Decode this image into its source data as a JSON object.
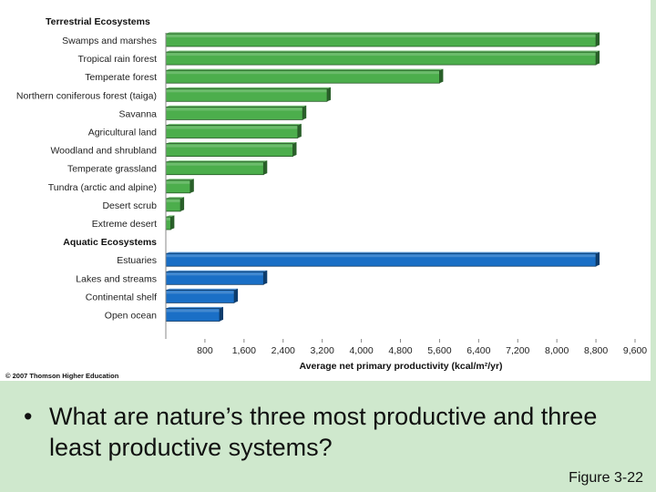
{
  "chart_data": {
    "type": "bar",
    "orientation": "horizontal",
    "title": "Terrestrial Ecosystems",
    "xlabel": "Average net primary productivity (kcal/m²/yr)",
    "xlim": [
      0,
      9600
    ],
    "ticks": [
      800,
      1600,
      2400,
      3200,
      4000,
      4800,
      5600,
      6400,
      7200,
      8000,
      8800,
      9600
    ],
    "tick_labels": [
      "800",
      "1,600",
      "2,400",
      "3,200",
      "4,000",
      "4,800",
      "5,600",
      "6,400",
      "7,200",
      "8,000",
      "8,800",
      "9,600"
    ],
    "groups": [
      {
        "name": "Terrestrial Ecosystems",
        "color": "#4cae4c",
        "categories": [
          "Swamps and marshes",
          "Tropical rain forest",
          "Temperate forest",
          "Northern coniferous forest (taiga)",
          "Savanna",
          "Agricultural land",
          "Woodland and shrubland",
          "Temperate grassland",
          "Tundra (arctic and alpine)",
          "Desert scrub",
          "Extreme desert"
        ],
        "values": [
          8800,
          8800,
          5600,
          3300,
          2800,
          2700,
          2600,
          2000,
          500,
          300,
          100
        ]
      },
      {
        "name": "Aquatic Ecosystems",
        "color": "#1a6fc6",
        "categories": [
          "Estuaries",
          "Lakes and streams",
          "Continental shelf",
          "Open ocean"
        ],
        "values": [
          8800,
          2000,
          1400,
          1100
        ]
      }
    ]
  },
  "copyright": "© 2007 Thomson Higher Education",
  "question": {
    "bullet": "•",
    "text": "What are nature’s three most productive and three least productive systems?"
  },
  "figure_ref": "Figure 3-22"
}
